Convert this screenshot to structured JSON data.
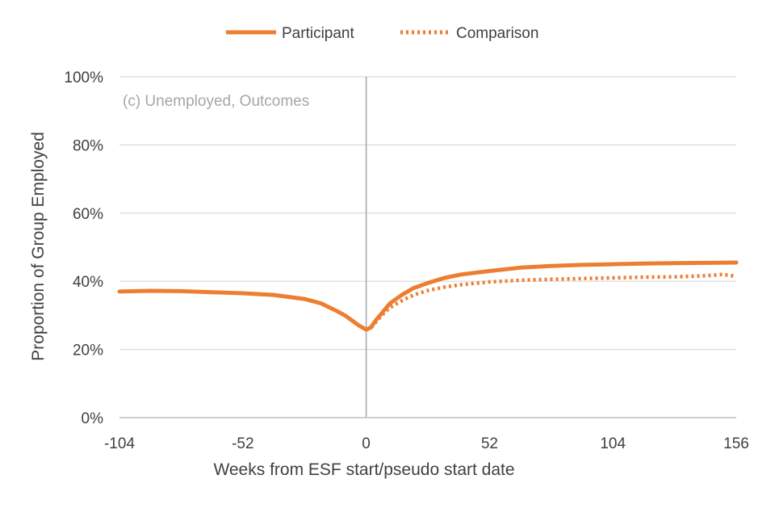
{
  "chart_data": {
    "type": "line",
    "title": "",
    "annotation": "(c) Unemployed, Outcomes",
    "xlabel": "Weeks from ESF start/pseudo start date",
    "ylabel": "Proportion of Group Employed",
    "xlim": [
      -104,
      156
    ],
    "ylim": [
      0,
      100
    ],
    "x_ticks": [
      -104,
      -52,
      0,
      52,
      104,
      156
    ],
    "x_tick_labels": [
      "-104",
      "-52",
      "0",
      "52",
      "104",
      "156"
    ],
    "y_ticks": [
      0,
      20,
      40,
      60,
      80,
      100
    ],
    "y_tick_labels": [
      "0%",
      "20%",
      "40%",
      "60%",
      "80%",
      "100%"
    ],
    "grid": "horizontal",
    "reference_line_x": 0,
    "legend_position": "top-center",
    "series": [
      {
        "name": "Participant",
        "color": "#ed7d31",
        "style": "solid",
        "points": [
          [
            -104,
            37
          ],
          [
            -91,
            37.2
          ],
          [
            -78,
            37.1
          ],
          [
            -65,
            36.8
          ],
          [
            -52,
            36.5
          ],
          [
            -39,
            36
          ],
          [
            -26,
            34.8
          ],
          [
            -19,
            33.5
          ],
          [
            -13,
            31.5
          ],
          [
            -9,
            30
          ],
          [
            -6,
            28.5
          ],
          [
            -3,
            27
          ],
          [
            0,
            25.8
          ],
          [
            2,
            26.5
          ],
          [
            4,
            28.5
          ],
          [
            7,
            31
          ],
          [
            10,
            33.5
          ],
          [
            15,
            36
          ],
          [
            20,
            38
          ],
          [
            26,
            39.5
          ],
          [
            33,
            41
          ],
          [
            40,
            42
          ],
          [
            52,
            43
          ],
          [
            65,
            44
          ],
          [
            78,
            44.5
          ],
          [
            91,
            44.8
          ],
          [
            104,
            45
          ],
          [
            117,
            45.2
          ],
          [
            130,
            45.3
          ],
          [
            143,
            45.4
          ],
          [
            156,
            45.5
          ]
        ]
      },
      {
        "name": "Comparison",
        "color": "#ed7d31",
        "style": "dotted",
        "points": [
          [
            0,
            25.8
          ],
          [
            2,
            26.3
          ],
          [
            4,
            28
          ],
          [
            7,
            30.3
          ],
          [
            10,
            32.3
          ],
          [
            15,
            34.3
          ],
          [
            20,
            36
          ],
          [
            26,
            37.3
          ],
          [
            33,
            38.3
          ],
          [
            40,
            39
          ],
          [
            52,
            39.8
          ],
          [
            65,
            40.3
          ],
          [
            78,
            40.6
          ],
          [
            91,
            40.8
          ],
          [
            104,
            41
          ],
          [
            117,
            41.2
          ],
          [
            130,
            41.3
          ],
          [
            143,
            41.6
          ],
          [
            150,
            42
          ],
          [
            156,
            41.5
          ]
        ]
      }
    ]
  }
}
